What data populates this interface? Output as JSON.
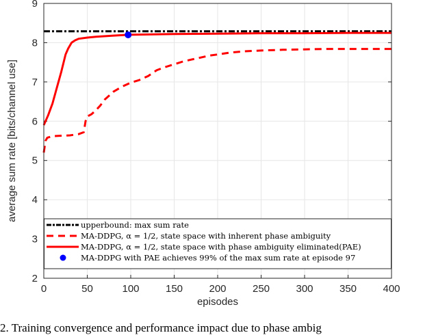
{
  "chart_data": {
    "type": "line",
    "title": "",
    "xlabel": "episodes",
    "ylabel": "average sum rate [bits/channel use]",
    "xlim": [
      0,
      400
    ],
    "ylim": [
      2,
      9
    ],
    "xticks": [
      0,
      50,
      100,
      150,
      200,
      250,
      300,
      350,
      400
    ],
    "yticks": [
      2,
      3,
      4,
      5,
      6,
      7,
      8,
      9
    ],
    "grid": true,
    "legend_position": "lower inside, full width",
    "series": [
      {
        "name": "upperbound: max sum rate",
        "style": "dash-dot",
        "color": "#000000",
        "x": [
          0,
          400
        ],
        "y": [
          8.29,
          8.29
        ]
      },
      {
        "name": "MA-DDPG, α = 1/2, state space with inherent phase ambiguity",
        "style": "dashed",
        "color": "#ff0000",
        "x": [
          0,
          2,
          4,
          10,
          20,
          30,
          40,
          46,
          48,
          50,
          55,
          60,
          65,
          70,
          75,
          80,
          90,
          100,
          110,
          120,
          130,
          140,
          150,
          160,
          170,
          180,
          190,
          200,
          215,
          230,
          250,
          275,
          300,
          325,
          350,
          375,
          400
        ],
        "y": [
          5.2,
          5.5,
          5.58,
          5.62,
          5.63,
          5.64,
          5.67,
          5.72,
          6.0,
          6.12,
          6.18,
          6.28,
          6.4,
          6.55,
          6.65,
          6.75,
          6.88,
          6.98,
          7.05,
          7.15,
          7.3,
          7.38,
          7.45,
          7.52,
          7.57,
          7.62,
          7.67,
          7.7,
          7.75,
          7.78,
          7.8,
          7.82,
          7.83,
          7.84,
          7.84,
          7.84,
          7.84
        ]
      },
      {
        "name": "MA-DDPG, α = 1/2, state space with phase ambiguity eliminated(PAE)",
        "style": "solid",
        "color": "#ff0000",
        "x": [
          0,
          5,
          10,
          15,
          20,
          25,
          28,
          32,
          36,
          40,
          50,
          60,
          80,
          97,
          120,
          150,
          200,
          250,
          300,
          350,
          400
        ],
        "y": [
          5.9,
          6.15,
          6.45,
          6.85,
          7.25,
          7.7,
          7.85,
          8.0,
          8.06,
          8.1,
          8.13,
          8.15,
          8.18,
          8.2,
          8.21,
          8.22,
          8.23,
          8.24,
          8.24,
          8.25,
          8.25
        ]
      },
      {
        "name": "MA-DDPG with PAE achieves 99% of the max sum rate at episode 97",
        "style": "marker",
        "color": "#0000ff",
        "x": [
          97
        ],
        "y": [
          8.2
        ]
      }
    ]
  },
  "axes": {
    "xlabel": "episodes",
    "ylabel": "average sum rate [bits/channel use]",
    "xtick_labels": [
      "0",
      "50",
      "100",
      "150",
      "200",
      "250",
      "300",
      "350",
      "400"
    ],
    "ytick_labels": [
      "2",
      "3",
      "4",
      "5",
      "6",
      "7",
      "8",
      "9"
    ]
  },
  "legend": {
    "items": [
      "upperbound: max sum rate",
      "MA-DDPG, α = 1/2, state space with inherent phase ambiguity",
      "MA-DDPG, α = 1/2, state space with phase ambiguity eliminated(PAE)",
      "MA-DDPG with PAE achieves 99% of the max sum rate at episode 97"
    ]
  },
  "caption": "2.  Training convergence and performance impact due to phase ambig"
}
